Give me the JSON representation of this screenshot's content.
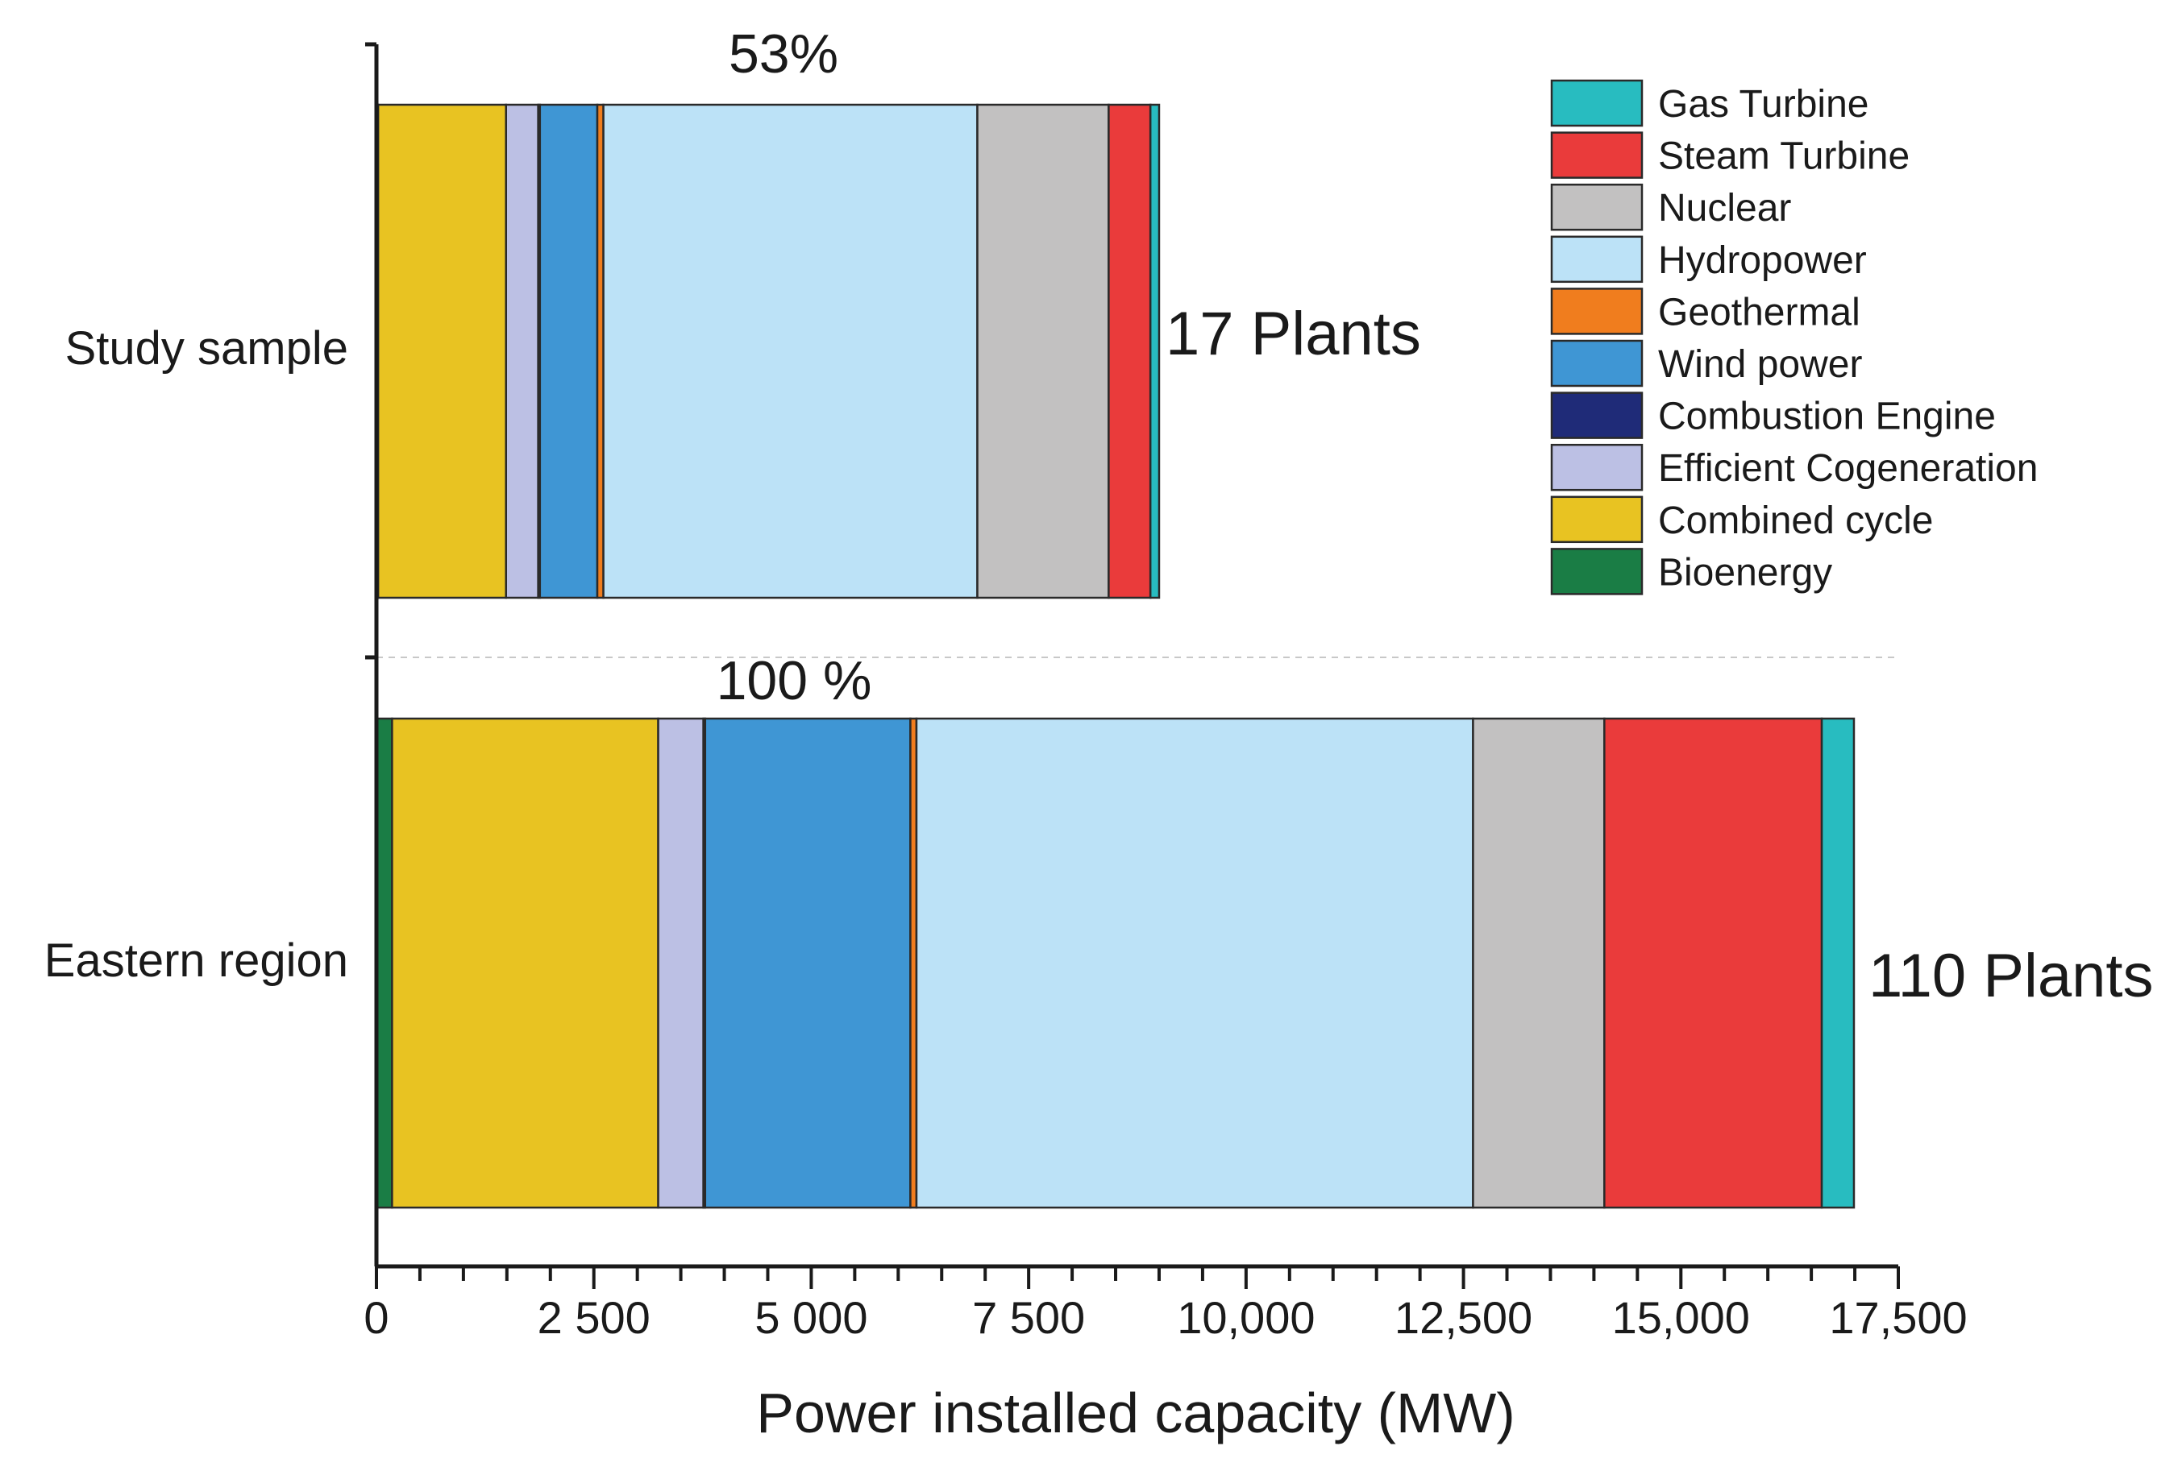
{
  "chart_data": {
    "type": "bar",
    "orientation": "horizontal",
    "stacked": true,
    "title": "",
    "xlabel": "Power installed capacity (MW)",
    "ylabel": "",
    "xlim": [
      0,
      17500
    ],
    "xticks": [
      0,
      2500,
      5000,
      7500,
      10000,
      12500,
      15000,
      17500
    ],
    "xtick_labels": [
      "0",
      "2 500",
      "5 000",
      "7 500",
      "10,000",
      "12,500",
      "15,000",
      "17,500"
    ],
    "categories": [
      "Study sample",
      "Eastern region"
    ],
    "annotations": [
      {
        "category": "Study sample",
        "share": "53%",
        "plants": "17 Plants"
      },
      {
        "category": "Eastern region",
        "share": "100 %",
        "plants": "110 Plants"
      }
    ],
    "legend_position": "top-right",
    "series": [
      {
        "name": "Bioenergy",
        "color": "#1a7d45",
        "values": [
          20,
          180
        ]
      },
      {
        "name": "Combined cycle",
        "color": "#e8c322",
        "values": [
          1470,
          3060
        ]
      },
      {
        "name": "Efficient Cogeneration",
        "color": "#bcc0e4",
        "values": [
          370,
          520
        ]
      },
      {
        "name": "Combustion Engine",
        "color": "#1f2b78",
        "values": [
          20,
          20
        ]
      },
      {
        "name": "Wind power",
        "color": "#3f96d4",
        "values": [
          660,
          2360
        ]
      },
      {
        "name": "Geothermal",
        "color": "#f07d1e",
        "values": [
          70,
          70
        ]
      },
      {
        "name": "Hydropower",
        "color": "#bce2f7",
        "values": [
          4300,
          6400
        ]
      },
      {
        "name": "Nuclear",
        "color": "#c2c1c1",
        "values": [
          1510,
          1510
        ]
      },
      {
        "name": "Steam Turbine",
        "color": "#ea3b3b",
        "values": [
          480,
          2500
        ]
      },
      {
        "name": "Gas Turbine",
        "color": "#28bcc0",
        "values": [
          100,
          370
        ]
      }
    ],
    "legend_order": [
      "Gas Turbine",
      "Steam Turbine",
      "Nuclear",
      "Hydropower",
      "Geothermal",
      "Wind power",
      "Combustion Engine",
      "Efficient Cogeneration",
      "Combined cycle",
      "Bioenergy"
    ]
  }
}
